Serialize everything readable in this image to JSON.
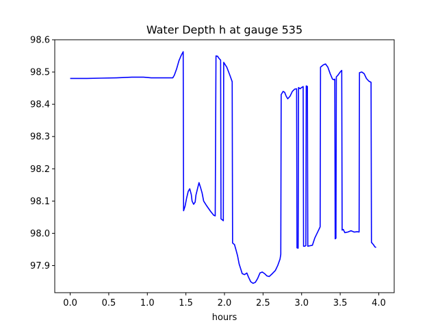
{
  "chart_data": {
    "type": "line",
    "title": "Water Depth h at gauge 535",
    "xlabel": "hours",
    "ylabel": "",
    "xlim": [
      -0.2,
      4.2
    ],
    "ylim": [
      97.816,
      98.6
    ],
    "xticks": [
      0.0,
      0.5,
      1.0,
      1.5,
      2.0,
      2.5,
      3.0,
      3.5,
      4.0
    ],
    "xtick_labels": [
      "0.0",
      "0.5",
      "1.0",
      "1.5",
      "2.0",
      "2.5",
      "3.0",
      "3.5",
      "4.0"
    ],
    "yticks": [
      97.9,
      98.0,
      98.1,
      98.2,
      98.3,
      98.4,
      98.5,
      98.6
    ],
    "ytick_labels": [
      "97.9",
      "98.0",
      "98.1",
      "98.2",
      "98.3",
      "98.4",
      "98.5",
      "98.6"
    ],
    "grid": false,
    "series": [
      {
        "name": "",
        "color": "#0000ff",
        "points": [
          [
            0.0,
            98.48
          ],
          [
            0.2,
            98.48
          ],
          [
            0.4,
            98.481
          ],
          [
            0.6,
            98.482
          ],
          [
            0.8,
            98.484
          ],
          [
            0.95,
            98.484
          ],
          [
            1.05,
            98.482
          ],
          [
            1.2,
            98.482
          ],
          [
            1.33,
            98.482
          ],
          [
            1.35,
            98.49
          ],
          [
            1.38,
            98.51
          ],
          [
            1.41,
            98.535
          ],
          [
            1.44,
            98.552
          ],
          [
            1.465,
            98.563
          ],
          [
            1.47,
            98.07
          ],
          [
            1.49,
            98.085
          ],
          [
            1.51,
            98.11
          ],
          [
            1.53,
            98.13
          ],
          [
            1.55,
            98.138
          ],
          [
            1.57,
            98.12
          ],
          [
            1.58,
            98.1
          ],
          [
            1.6,
            98.09
          ],
          [
            1.62,
            98.097
          ],
          [
            1.63,
            98.118
          ],
          [
            1.65,
            98.138
          ],
          [
            1.67,
            98.157
          ],
          [
            1.69,
            98.142
          ],
          [
            1.71,
            98.125
          ],
          [
            1.73,
            98.1
          ],
          [
            1.77,
            98.085
          ],
          [
            1.82,
            98.068
          ],
          [
            1.86,
            98.056
          ],
          [
            1.88,
            98.054
          ],
          [
            1.89,
            98.55
          ],
          [
            1.91,
            98.549
          ],
          [
            1.93,
            98.542
          ],
          [
            1.95,
            98.537
          ],
          [
            1.955,
            98.045
          ],
          [
            1.98,
            98.04
          ],
          [
            1.985,
            98.039
          ],
          [
            1.99,
            98.53
          ],
          [
            2.03,
            98.515
          ],
          [
            2.07,
            98.49
          ],
          [
            2.1,
            98.47
          ],
          [
            2.105,
            97.97
          ],
          [
            2.13,
            97.965
          ],
          [
            2.15,
            97.948
          ],
          [
            2.17,
            97.93
          ],
          [
            2.19,
            97.905
          ],
          [
            2.21,
            97.89
          ],
          [
            2.23,
            97.875
          ],
          [
            2.26,
            97.872
          ],
          [
            2.29,
            97.877
          ],
          [
            2.31,
            97.865
          ],
          [
            2.34,
            97.85
          ],
          [
            2.37,
            97.845
          ],
          [
            2.4,
            97.848
          ],
          [
            2.43,
            97.86
          ],
          [
            2.46,
            97.877
          ],
          [
            2.49,
            97.88
          ],
          [
            2.52,
            97.875
          ],
          [
            2.55,
            97.868
          ],
          [
            2.58,
            97.866
          ],
          [
            2.62,
            97.875
          ],
          [
            2.66,
            97.885
          ],
          [
            2.69,
            97.9
          ],
          [
            2.72,
            97.92
          ],
          [
            2.73,
            97.935
          ],
          [
            2.735,
            98.43
          ],
          [
            2.76,
            98.44
          ],
          [
            2.78,
            98.437
          ],
          [
            2.8,
            98.425
          ],
          [
            2.82,
            98.417
          ],
          [
            2.85,
            98.425
          ],
          [
            2.88,
            98.44
          ],
          [
            2.91,
            98.447
          ],
          [
            2.935,
            98.448
          ],
          [
            2.94,
            97.955
          ],
          [
            2.955,
            97.954
          ],
          [
            2.96,
            98.452
          ],
          [
            2.98,
            98.448
          ],
          [
            3.0,
            98.452
          ],
          [
            3.02,
            98.455
          ],
          [
            3.025,
            97.96
          ],
          [
            3.04,
            97.96
          ],
          [
            3.055,
            97.962
          ],
          [
            3.06,
            98.457
          ],
          [
            3.075,
            98.455
          ],
          [
            3.08,
            97.96
          ],
          [
            3.1,
            97.961
          ],
          [
            3.14,
            97.963
          ],
          [
            3.17,
            97.985
          ],
          [
            3.21,
            98.005
          ],
          [
            3.24,
            98.02
          ],
          [
            3.245,
            98.515
          ],
          [
            3.28,
            98.522
          ],
          [
            3.31,
            98.525
          ],
          [
            3.34,
            98.515
          ],
          [
            3.37,
            98.495
          ],
          [
            3.4,
            98.478
          ],
          [
            3.42,
            98.476
          ],
          [
            3.43,
            98.478
          ],
          [
            3.435,
            97.983
          ],
          [
            3.445,
            97.985
          ],
          [
            3.45,
            98.485
          ],
          [
            3.47,
            98.49
          ],
          [
            3.5,
            98.5
          ],
          [
            3.52,
            98.505
          ],
          [
            3.525,
            98.01
          ],
          [
            3.54,
            98.012
          ],
          [
            3.56,
            98.002
          ],
          [
            3.6,
            98.004
          ],
          [
            3.64,
            98.008
          ],
          [
            3.68,
            98.004
          ],
          [
            3.72,
            98.005
          ],
          [
            3.745,
            98.004
          ],
          [
            3.75,
            98.498
          ],
          [
            3.78,
            98.5
          ],
          [
            3.81,
            98.495
          ],
          [
            3.84,
            98.48
          ],
          [
            3.87,
            98.472
          ],
          [
            3.9,
            98.468
          ],
          [
            3.905,
            97.972
          ],
          [
            3.93,
            97.965
          ],
          [
            3.95,
            97.958
          ],
          [
            3.965,
            97.956
          ]
        ]
      }
    ]
  }
}
